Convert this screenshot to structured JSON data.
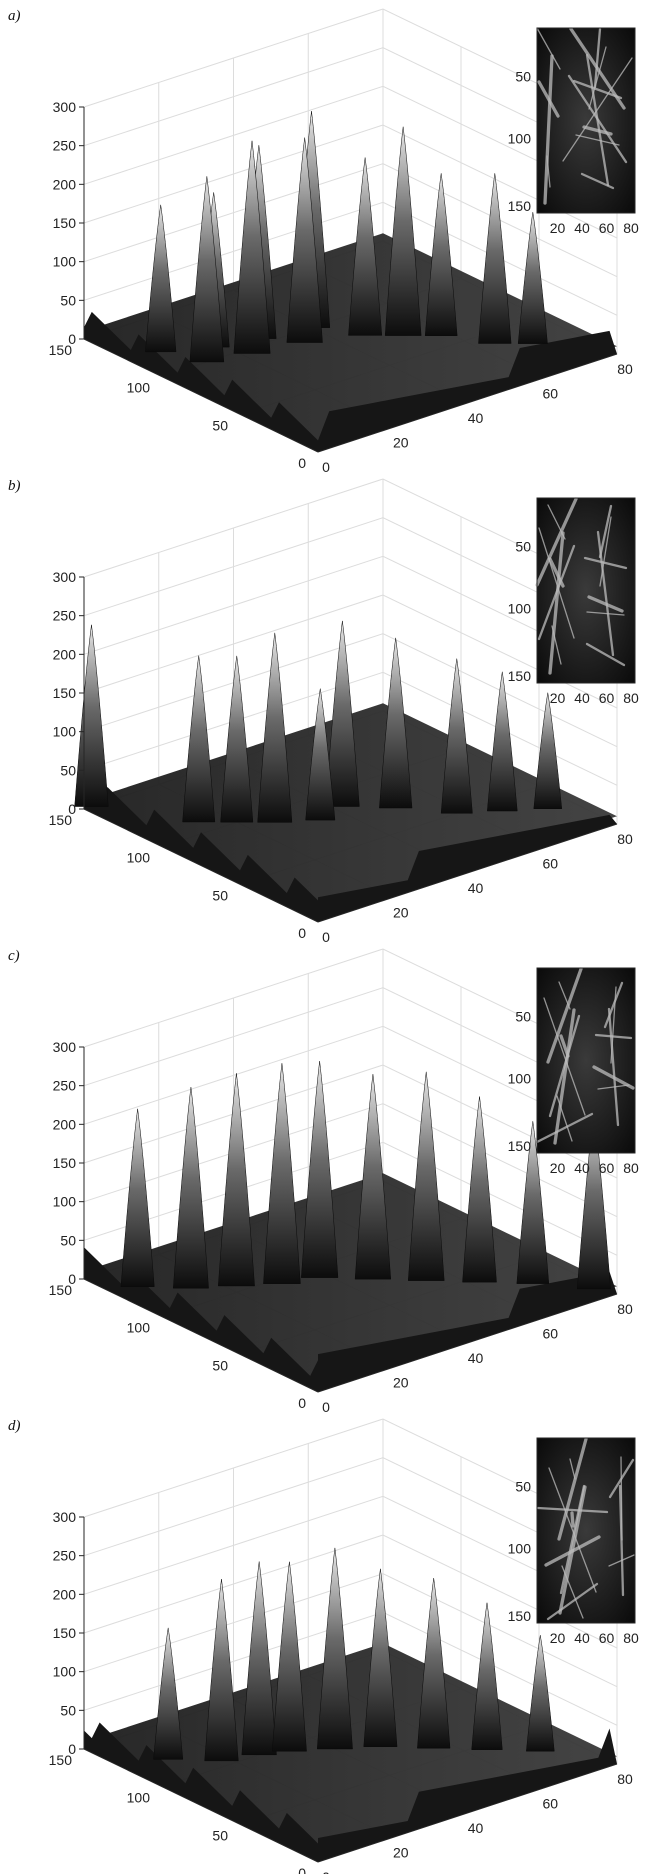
{
  "chart_data": [
    {
      "type": "surface",
      "panel_label": "a)",
      "zlim": [
        0,
        300
      ],
      "z_ticks": [
        "0",
        "50",
        "100",
        "150",
        "200",
        "250",
        "300"
      ],
      "x_ticks": [
        "0",
        "20",
        "40",
        "60",
        "80"
      ],
      "y_ticks": [
        "0",
        "50",
        "100",
        "150"
      ],
      "grid": true,
      "peaks": [
        {
          "x": 8,
          "y": 120,
          "z": 190
        },
        {
          "x": 12,
          "y": 100,
          "z": 240
        },
        {
          "x": 18,
          "y": 110,
          "z": 200
        },
        {
          "x": 22,
          "y": 95,
          "z": 275
        },
        {
          "x": 28,
          "y": 105,
          "z": 250
        },
        {
          "x": 34,
          "y": 90,
          "z": 265
        },
        {
          "x": 40,
          "y": 100,
          "z": 280
        },
        {
          "x": 46,
          "y": 80,
          "z": 230
        },
        {
          "x": 52,
          "y": 70,
          "z": 270
        },
        {
          "x": 58,
          "y": 60,
          "z": 210
        },
        {
          "x": 64,
          "y": 40,
          "z": 220
        },
        {
          "x": 70,
          "y": 30,
          "z": 170
        }
      ],
      "inset": {
        "x_ticks": [
          "20",
          "40",
          "60",
          "80"
        ],
        "y_ticks": [
          "50",
          "100",
          "150"
        ]
      }
    },
    {
      "type": "surface",
      "panel_label": "b)",
      "zlim": [
        0,
        300
      ],
      "z_ticks": [
        "0",
        "50",
        "100",
        "150",
        "200",
        "250",
        "300"
      ],
      "x_ticks": [
        "0",
        "20",
        "40",
        "60",
        "80"
      ],
      "y_ticks": [
        "0",
        "50",
        "100",
        "150"
      ],
      "grid": true,
      "peaks": [
        {
          "x": 2,
          "y": 150,
          "z": 235
        },
        {
          "x": 14,
          "y": 110,
          "z": 215
        },
        {
          "x": 20,
          "y": 100,
          "z": 215
        },
        {
          "x": 26,
          "y": 90,
          "z": 245
        },
        {
          "x": 34,
          "y": 80,
          "z": 170
        },
        {
          "x": 42,
          "y": 85,
          "z": 240
        },
        {
          "x": 50,
          "y": 70,
          "z": 220
        },
        {
          "x": 58,
          "y": 50,
          "z": 200
        },
        {
          "x": 66,
          "y": 40,
          "z": 180
        },
        {
          "x": 74,
          "y": 30,
          "z": 150
        }
      ],
      "inset": {
        "x_ticks": [
          "20",
          "40",
          "60",
          "80"
        ],
        "y_ticks": [
          "50",
          "100",
          "150"
        ]
      }
    },
    {
      "type": "surface",
      "panel_label": "c)",
      "zlim": [
        0,
        300
      ],
      "z_ticks": [
        "0",
        "50",
        "100",
        "150",
        "200",
        "250",
        "300"
      ],
      "x_ticks": [
        "0",
        "20",
        "40",
        "60",
        "80"
      ],
      "y_ticks": [
        "0",
        "50",
        "100",
        "150"
      ],
      "grid": true,
      "peaks": [
        {
          "x": 6,
          "y": 130,
          "z": 230
        },
        {
          "x": 14,
          "y": 115,
          "z": 260
        },
        {
          "x": 22,
          "y": 105,
          "z": 275
        },
        {
          "x": 30,
          "y": 95,
          "z": 285
        },
        {
          "x": 38,
          "y": 90,
          "z": 280
        },
        {
          "x": 46,
          "y": 75,
          "z": 265
        },
        {
          "x": 54,
          "y": 60,
          "z": 270
        },
        {
          "x": 62,
          "y": 45,
          "z": 240
        },
        {
          "x": 70,
          "y": 30,
          "z": 210
        },
        {
          "x": 78,
          "y": 10,
          "z": 230
        }
      ],
      "inset": {
        "x_ticks": [
          "20",
          "40",
          "60",
          "80"
        ],
        "y_ticks": [
          "50",
          "100",
          "150"
        ]
      }
    },
    {
      "type": "surface",
      "panel_label": "d)",
      "zlim": [
        0,
        300
      ],
      "z_ticks": [
        "0",
        "50",
        "100",
        "150",
        "200",
        "250",
        "300"
      ],
      "x_ticks": [
        "0",
        "20",
        "40",
        "60",
        "80"
      ],
      "y_ticks": [
        "0",
        "50",
        "100",
        "150"
      ],
      "grid": true,
      "peaks": [
        {
          "x": 10,
          "y": 120,
          "z": 170
        },
        {
          "x": 18,
          "y": 105,
          "z": 235
        },
        {
          "x": 26,
          "y": 100,
          "z": 250
        },
        {
          "x": 32,
          "y": 95,
          "z": 245
        },
        {
          "x": 40,
          "y": 85,
          "z": 260
        },
        {
          "x": 48,
          "y": 75,
          "z": 230
        },
        {
          "x": 56,
          "y": 60,
          "z": 220
        },
        {
          "x": 64,
          "y": 45,
          "z": 190
        },
        {
          "x": 72,
          "y": 30,
          "z": 150
        }
      ],
      "inset": {
        "x_ticks": [
          "20",
          "40",
          "60",
          "80"
        ],
        "y_ticks": [
          "50",
          "100",
          "150"
        ]
      }
    }
  ]
}
